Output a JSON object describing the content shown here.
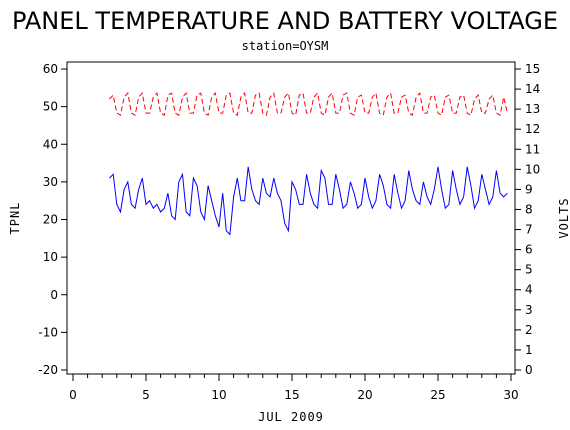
{
  "chart_data": {
    "type": "line",
    "title": "PANEL TEMPERATURE AND BATTERY VOLTAGE",
    "subtitle": "station=OYSM",
    "xlabel": "JUL 2009",
    "ylabel_left": "TPNL",
    "ylabel_right": "VOLTS",
    "xlim": [
      0,
      30
    ],
    "ylim_left": [
      -20,
      60
    ],
    "ylim_right": [
      0,
      15
    ],
    "x_ticks": [
      0,
      5,
      10,
      15,
      20,
      25,
      30
    ],
    "y_ticks_left": [
      -20,
      -10,
      0,
      10,
      20,
      30,
      40,
      50,
      60
    ],
    "y_ticks_right": [
      0,
      1,
      2,
      3,
      4,
      5,
      6,
      7,
      8,
      9,
      10,
      11,
      12,
      13,
      14,
      15
    ],
    "grid": false,
    "series": [
      {
        "axis": "left",
        "color": "#0000ff",
        "style": "solid",
        "x": [
          2.5,
          2.75,
          3.0,
          3.25,
          3.5,
          3.75,
          4.0,
          4.25,
          4.5,
          4.75,
          5.0,
          5.25,
          5.5,
          5.75,
          6.0,
          6.25,
          6.5,
          6.75,
          7.0,
          7.25,
          7.5,
          7.75,
          8.0,
          8.25,
          8.5,
          8.75,
          9.0,
          9.25,
          9.5,
          9.75,
          10.0,
          10.25,
          10.5,
          10.75,
          11.0,
          11.25,
          11.5,
          11.75,
          12.0,
          12.25,
          12.5,
          12.75,
          13.0,
          13.25,
          13.5,
          13.75,
          14.0,
          14.25,
          14.5,
          14.75,
          15.0,
          15.25,
          15.5,
          15.75,
          16.0,
          16.25,
          16.5,
          16.75,
          17.0,
          17.25,
          17.5,
          17.75,
          18.0,
          18.25,
          18.5,
          18.75,
          19.0,
          19.25,
          19.5,
          19.75,
          20.0,
          20.25,
          20.5,
          20.75,
          21.0,
          21.25,
          21.5,
          21.75,
          22.0,
          22.25,
          22.5,
          22.75,
          23.0,
          23.25,
          23.5,
          23.75,
          24.0,
          24.25,
          24.5,
          24.75,
          25.0,
          25.25,
          25.5,
          25.75,
          26.0,
          26.25,
          26.5,
          26.75,
          27.0,
          27.25,
          27.5,
          27.75,
          28.0,
          28.25,
          28.5,
          28.75,
          29.0,
          29.25,
          29.5,
          29.75
        ],
        "y": [
          31,
          32,
          24,
          22,
          28,
          30,
          24,
          23,
          28,
          31,
          24,
          25,
          23,
          24,
          22,
          23,
          27,
          21,
          20,
          30,
          32,
          22,
          21,
          31,
          29,
          22,
          20,
          29,
          25,
          21,
          18,
          27,
          17,
          16,
          26,
          31,
          25,
          25,
          34,
          28,
          25,
          24,
          31,
          27,
          26,
          31,
          27,
          25,
          19,
          17,
          30,
          28,
          24,
          24,
          32,
          27,
          24,
          23,
          33,
          31,
          24,
          24,
          32,
          28,
          23,
          24,
          30,
          27,
          23,
          24,
          31,
          26,
          23,
          25,
          32,
          29,
          24,
          23,
          32,
          27,
          23,
          25,
          33,
          28,
          25,
          24,
          30,
          26,
          24,
          28,
          34,
          28,
          23,
          24,
          33,
          28,
          24,
          26,
          34,
          29,
          23,
          25,
          32,
          28,
          24,
          26,
          33,
          27,
          26,
          27
        ]
      },
      {
        "axis": "right",
        "color": "#ff0000",
        "style": "dashed",
        "x": [
          2.5,
          2.75,
          3.0,
          3.25,
          3.5,
          3.75,
          4.0,
          4.25,
          4.5,
          4.75,
          5.0,
          5.25,
          5.5,
          5.75,
          6.0,
          6.25,
          6.5,
          6.75,
          7.0,
          7.25,
          7.5,
          7.75,
          8.0,
          8.25,
          8.5,
          8.75,
          9.0,
          9.25,
          9.5,
          9.75,
          10.0,
          10.25,
          10.5,
          10.75,
          11.0,
          11.25,
          11.5,
          11.75,
          12.0,
          12.25,
          12.5,
          12.75,
          13.0,
          13.25,
          13.5,
          13.75,
          14.0,
          14.25,
          14.5,
          14.75,
          15.0,
          15.25,
          15.5,
          15.75,
          16.0,
          16.25,
          16.5,
          16.75,
          17.0,
          17.25,
          17.5,
          17.75,
          18.0,
          18.25,
          18.5,
          18.75,
          19.0,
          19.25,
          19.5,
          19.75,
          20.0,
          20.25,
          20.5,
          20.75,
          21.0,
          21.25,
          21.5,
          21.75,
          22.0,
          22.25,
          22.5,
          22.75,
          23.0,
          23.25,
          23.5,
          23.75,
          24.0,
          24.25,
          24.5,
          24.75,
          25.0,
          25.25,
          25.5,
          25.75,
          26.0,
          26.25,
          26.5,
          26.75,
          27.0,
          27.25,
          27.5,
          27.75,
          28.0,
          28.25,
          28.5,
          28.75,
          29.0,
          29.25,
          29.5,
          29.75
        ],
        "y": [
          13.5,
          13.7,
          12.8,
          12.7,
          13.6,
          13.8,
          12.8,
          12.7,
          13.6,
          13.8,
          12.8,
          12.8,
          13.6,
          13.8,
          12.8,
          12.7,
          13.7,
          13.8,
          12.8,
          12.7,
          13.6,
          13.8,
          12.8,
          12.8,
          13.7,
          13.8,
          12.8,
          12.7,
          13.6,
          13.8,
          12.8,
          12.8,
          13.7,
          13.8,
          12.8,
          12.7,
          13.6,
          13.8,
          12.8,
          12.8,
          13.7,
          13.8,
          12.8,
          12.7,
          13.6,
          13.8,
          12.8,
          12.8,
          13.6,
          13.8,
          12.8,
          12.7,
          13.7,
          13.8,
          12.8,
          12.8,
          13.6,
          13.8,
          12.8,
          12.7,
          13.6,
          13.8,
          12.8,
          12.8,
          13.7,
          13.8,
          12.8,
          12.7,
          13.6,
          13.7,
          12.8,
          12.8,
          13.6,
          13.8,
          12.8,
          12.7,
          13.6,
          13.8,
          12.8,
          12.8,
          13.6,
          13.7,
          12.8,
          12.7,
          13.6,
          13.8,
          12.8,
          12.8,
          13.6,
          13.7,
          12.8,
          12.7,
          13.6,
          13.7,
          12.8,
          12.8,
          13.6,
          13.7,
          12.8,
          12.7,
          13.5,
          13.7,
          12.8,
          12.8,
          13.5,
          13.7,
          12.8,
          12.7,
          13.6,
          12.8
        ]
      }
    ]
  }
}
